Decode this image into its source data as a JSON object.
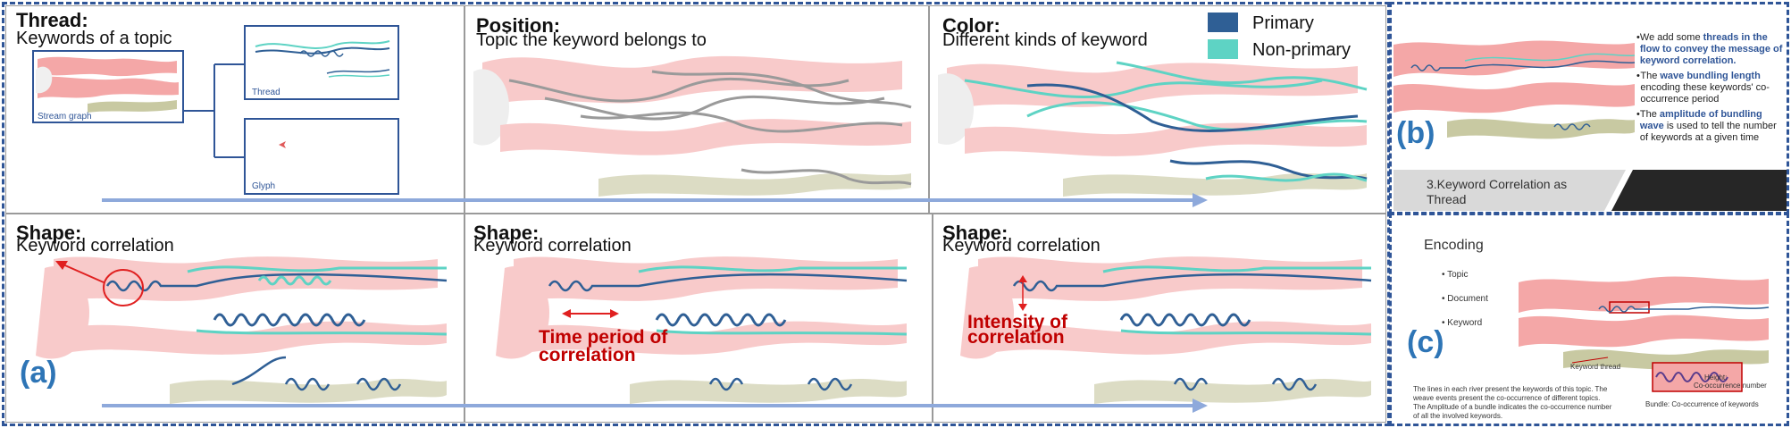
{
  "panels": {
    "thread": {
      "title": "Thread:",
      "subtitle": "Keywords of a topic",
      "labels": {
        "stream": "Stream graph",
        "thread": "Thread",
        "glyph": "Glyph"
      }
    },
    "position": {
      "title": "Position:",
      "subtitle": "Topic the keyword belongs to"
    },
    "color": {
      "title": "Color:",
      "subtitle": "Different kinds of keyword",
      "legend": [
        {
          "label": "Primary",
          "color": "#2f5f95"
        },
        {
          "label": "Non-primary",
          "color": "#5ed3c4"
        }
      ]
    },
    "shape1": {
      "title": "Shape:",
      "subtitle": "Keyword correlation"
    },
    "shape2": {
      "title": "Shape:",
      "subtitle": "Keyword correlation",
      "annotation_line1": "Time period of",
      "annotation_line2": "correlation"
    },
    "shape3": {
      "title": "Shape:",
      "subtitle": "Keyword correlation",
      "annotation_line1": "Intensity of",
      "annotation_line2": "correlation"
    }
  },
  "labels": {
    "a": "(a)",
    "b": "(b)",
    "c": "(c)"
  },
  "panel_b": {
    "bullets": [
      {
        "pre": "We add some ",
        "hl": "threads in the flow to convey the message of keyword correlation.",
        "post": ""
      },
      {
        "pre": "The ",
        "hl": "wave bundling length",
        "post": " encoding these keywords' co-occurrence period"
      },
      {
        "pre": "The ",
        "hl": "amplitude of bundling wave",
        "post": " is used to tell the number of keywords at a given time"
      }
    ],
    "footer_line1": "3.Keyword Correlation as",
    "footer_line2": "Thread"
  },
  "panel_c": {
    "title": "Encoding",
    "items": [
      "Topic",
      "Document",
      "Keyword"
    ],
    "caption_line1": "The lines in each river present the keywords of this topic. The",
    "caption_line2": "weave events present the co-occurrence of different topics.",
    "caption_line3": "The Amplitude of a bundle indicates the co-occurrence number",
    "caption_line4": "of all the involved keywords.",
    "thread_label": "Keyword thread",
    "bundle_label": "Bundle: Co-occurrence of keywords",
    "height_label1": "Height:",
    "height_label2": "Co-occurrence number"
  },
  "colors": {
    "primary": "#2f5f95",
    "nonprimary": "#5ed3c4",
    "stream_pink": "#f4a7a7",
    "stream_olive": "#c8c9a2",
    "arrow_blue": "#8ea9db",
    "frame_blue": "#2f5597",
    "annot_red": "#c00000"
  }
}
